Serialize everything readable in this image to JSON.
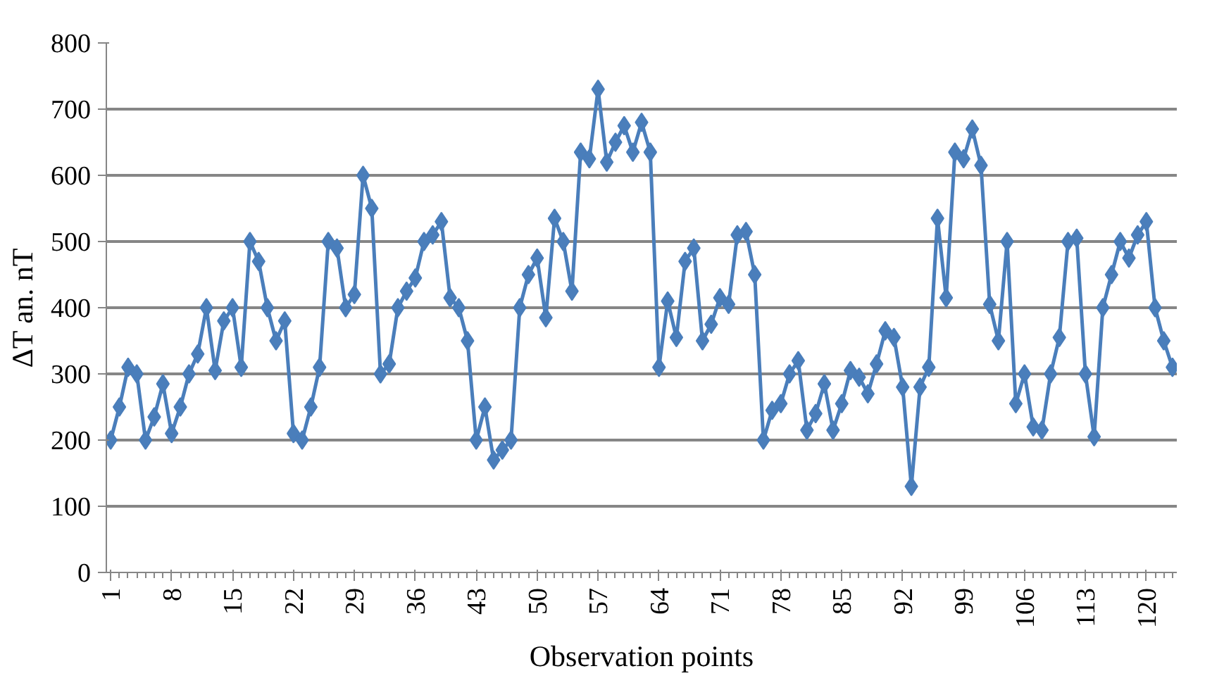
{
  "chart_data": {
    "type": "line",
    "xlabel": "Observation points",
    "ylabel": "ΔT an. nT",
    "categories": [
      "1",
      null,
      null,
      null,
      null,
      null,
      null,
      "8",
      null,
      null,
      null,
      null,
      null,
      null,
      "15",
      null,
      null,
      null,
      null,
      null,
      null,
      "22",
      null,
      null,
      null,
      null,
      null,
      null,
      "29",
      null,
      null,
      null,
      null,
      null,
      null,
      "36",
      null,
      null,
      null,
      null,
      null,
      null,
      "43",
      null,
      null,
      null,
      null,
      null,
      null,
      "50",
      null,
      null,
      null,
      null,
      null,
      null,
      "57",
      null,
      null,
      null,
      null,
      null,
      null,
      "64",
      null,
      null,
      null,
      null,
      null,
      null,
      "71",
      null,
      null,
      null,
      null,
      null,
      null,
      "78",
      null,
      null,
      null,
      null,
      null,
      null,
      "85",
      null,
      null,
      null,
      null,
      null,
      null,
      "92",
      null,
      null,
      null,
      null,
      null,
      null,
      "99",
      null,
      null,
      null,
      null,
      null,
      null,
      "106",
      null,
      null,
      null,
      null,
      null,
      null,
      "113",
      null,
      null,
      null,
      null,
      null,
      null,
      "120",
      null,
      null,
      null
    ],
    "series": [
      {
        "color": "#4a7ebb",
        "values": [
          200,
          250,
          310,
          300,
          200,
          235,
          285,
          210,
          250,
          300,
          330,
          400,
          305,
          380,
          400,
          310,
          500,
          470,
          400,
          350,
          380,
          210,
          200,
          250,
          310,
          500,
          490,
          400,
          420,
          600,
          550,
          300,
          315,
          400,
          425,
          445,
          500,
          510,
          530,
          415,
          400,
          350,
          200,
          250,
          170,
          185,
          200,
          400,
          450,
          475,
          385,
          535,
          500,
          425,
          635,
          625,
          730,
          620,
          650,
          675,
          635,
          680,
          635,
          310,
          410,
          355,
          470,
          490,
          350,
          375,
          415,
          405,
          510,
          515,
          450,
          200,
          245,
          255,
          300,
          320,
          215,
          240,
          285,
          215,
          255,
          305,
          295,
          270,
          315,
          365,
          355,
          280,
          130,
          280,
          310,
          535,
          415,
          635,
          625,
          670,
          615,
          405,
          350,
          500,
          255,
          300,
          220,
          215,
          300,
          355,
          500,
          505,
          300,
          205,
          400,
          450,
          500,
          475,
          510,
          530,
          400,
          350,
          310
        ]
      }
    ],
    "ylim": [
      0,
      800
    ],
    "yticks": [
      0,
      100,
      200,
      300,
      400,
      500,
      600,
      700,
      800
    ],
    "grid": "y",
    "marker": "diamond",
    "line_style": "solid"
  }
}
